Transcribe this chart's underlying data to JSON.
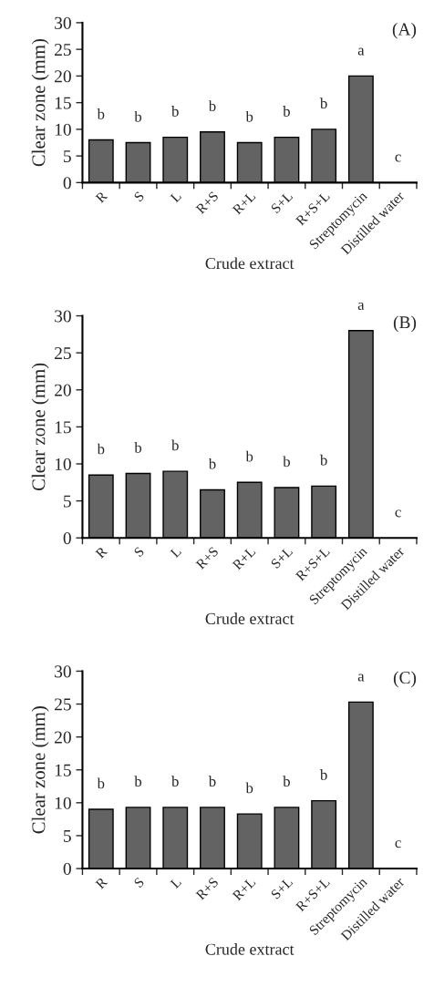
{
  "chart_data": [
    {
      "type": "bar",
      "title": "(A)",
      "xlabel": "Crude extract",
      "ylabel": "Clear zone (mm)",
      "categories": [
        "R",
        "S",
        "L",
        "R+S",
        "R+L",
        "S+L",
        "R+S+L",
        "Streptomycin",
        "Distilled water"
      ],
      "values": [
        8,
        7.5,
        8.5,
        9.5,
        7.5,
        8.5,
        10,
        20,
        0
      ],
      "color": "#636363",
      "ylim": [
        0,
        30
      ],
      "yticks": [
        0,
        5,
        10,
        15,
        20,
        25,
        30
      ],
      "grid": false,
      "legend": false,
      "annotations": [
        {
          "text": "b",
          "x": "R",
          "y": 8
        },
        {
          "text": "b",
          "x": "S",
          "y": 7.5
        },
        {
          "text": "b",
          "x": "L",
          "y": 8.5
        },
        {
          "text": "b",
          "x": "R+S",
          "y": 9.5
        },
        {
          "text": "b",
          "x": "R+L",
          "y": 7.5
        },
        {
          "text": "b",
          "x": "S+L",
          "y": 8.5
        },
        {
          "text": "b",
          "x": "R+S+L",
          "y": 10
        },
        {
          "text": "a",
          "x": "Streptomycin",
          "y": 20
        },
        {
          "text": "c",
          "x": "Distilled water",
          "y": 0
        }
      ]
    },
    {
      "type": "bar",
      "title": "(B)",
      "xlabel": "Crude extract",
      "ylabel": "Clear zone (mm)",
      "categories": [
        "R",
        "S",
        "L",
        "R+S",
        "R+L",
        "S+L",
        "R+S+L",
        "Streptomycin",
        "Distilled water"
      ],
      "values": [
        8.5,
        8.7,
        9,
        6.5,
        7.5,
        6.8,
        7,
        28,
        0
      ],
      "color": "#636363",
      "ylim": [
        0,
        30
      ],
      "yticks": [
        0,
        5,
        10,
        15,
        20,
        25,
        30
      ],
      "grid": false,
      "legend": false,
      "annotations": [
        {
          "text": "b",
          "x": "R",
          "y": 8.5
        },
        {
          "text": "b",
          "x": "S",
          "y": 8.7
        },
        {
          "text": "b",
          "x": "L",
          "y": 9
        },
        {
          "text": "b",
          "x": "R+S",
          "y": 6.5
        },
        {
          "text": "b",
          "x": "R+L",
          "y": 7.5
        },
        {
          "text": "b",
          "x": "S+L",
          "y": 6.8
        },
        {
          "text": "b",
          "x": "R+S+L",
          "y": 7
        },
        {
          "text": "a",
          "x": "Streptomycin",
          "y": 28
        },
        {
          "text": "c",
          "x": "Distilled water",
          "y": 0
        }
      ]
    },
    {
      "type": "bar",
      "title": "(C)",
      "xlabel": "Crude extract",
      "ylabel": "Clear zone (mm)",
      "categories": [
        "R",
        "S",
        "L",
        "R+S",
        "R+L",
        "S+L",
        "R+S+L",
        "Streptomycin",
        "Distilled water"
      ],
      "values": [
        9,
        9.3,
        9.3,
        9.3,
        8.3,
        9.3,
        10.3,
        25.3,
        0
      ],
      "color": "#636363",
      "ylim": [
        0,
        30
      ],
      "yticks": [
        0,
        5,
        10,
        15,
        20,
        25,
        30
      ],
      "grid": false,
      "legend": false,
      "annotations": [
        {
          "text": "b",
          "x": "R",
          "y": 9
        },
        {
          "text": "b",
          "x": "S",
          "y": 9.3
        },
        {
          "text": "b",
          "x": "L",
          "y": 9.3
        },
        {
          "text": "b",
          "x": "R+S",
          "y": 9.3
        },
        {
          "text": "b",
          "x": "R+L",
          "y": 8.3
        },
        {
          "text": "b",
          "x": "S+L",
          "y": 9.3
        },
        {
          "text": "b",
          "x": "R+S+L",
          "y": 10.3
        },
        {
          "text": "a",
          "x": "Streptomycin",
          "y": 25.3
        },
        {
          "text": "c",
          "x": "Distilled water",
          "y": 0
        }
      ]
    }
  ]
}
